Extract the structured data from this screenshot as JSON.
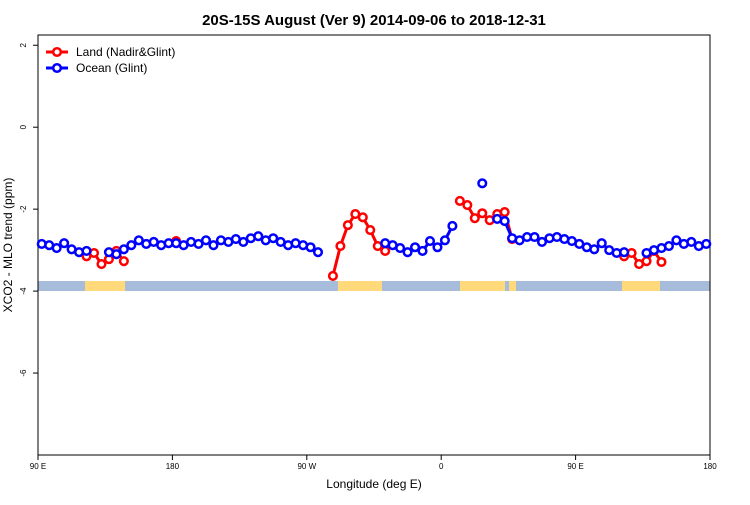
{
  "chart_data": {
    "type": "line",
    "title": "20S-15S August (Ver 9)   2014-09-06 to 2018-12-31",
    "x_label": "Longitude (deg E)",
    "y_label": "XCO2 - MLO trend (ppm)",
    "x": [
      92.5,
      97.5,
      102.5,
      107.5,
      112.5,
      117.5,
      122.5,
      127.5,
      132.5,
      137.5,
      142.5,
      147.5,
      152.5,
      157.5,
      162.5,
      167.5,
      172.5,
      177.5,
      182.5,
      187.5,
      192.5,
      197.5,
      202.5,
      207.5,
      212.5,
      217.5,
      222.5,
      227.5,
      232.5,
      237.5,
      242.5,
      247.5,
      252.5,
      257.5,
      262.5,
      267.5,
      272.5,
      277.5,
      282.5,
      287.5,
      292.5,
      297.5,
      302.5,
      307.5,
      312.5,
      317.5,
      322.5,
      327.5,
      332.5,
      337.5,
      342.5,
      347.5,
      352.5,
      357.5,
      362.5,
      367.5,
      372.5,
      377.5,
      382.5,
      387.5,
      392.5,
      397.5,
      402.5,
      407.5,
      412.5,
      417.5,
      422.5,
      427.5,
      432.5,
      437.5,
      442.5,
      447.5,
      452.5,
      457.5,
      462.5,
      467.5,
      472.5,
      477.5,
      482.5,
      487.5,
      492.5,
      497.5,
      502.5,
      507.5,
      512.5,
      517.5,
      522.5,
      527.5,
      532.5,
      537.5
    ],
    "series": [
      {
        "name": "Land (Nadir&Glint)",
        "color": "#ff0000",
        "values": [
          null,
          null,
          null,
          null,
          null,
          null,
          -3.15,
          -3.07,
          -3.34,
          -3.22,
          -3.02,
          -3.27,
          null,
          null,
          null,
          null,
          null,
          null,
          -2.78,
          null,
          null,
          null,
          null,
          null,
          null,
          null,
          null,
          null,
          null,
          null,
          null,
          null,
          null,
          null,
          null,
          null,
          null,
          null,
          null,
          -3.63,
          -2.9,
          -2.39,
          -2.12,
          -2.2,
          -2.51,
          -2.9,
          -3.02,
          null,
          null,
          null,
          null,
          null,
          null,
          null,
          null,
          null,
          -1.8,
          -1.9,
          -2.22,
          -2.1,
          -2.27,
          -2.12,
          -2.07,
          -2.73,
          null,
          null,
          null,
          null,
          null,
          null,
          null,
          null,
          null,
          null,
          null,
          null,
          null,
          null,
          -3.15,
          -3.07,
          -3.34,
          -3.27,
          -3.02,
          -3.29,
          null,
          null,
          null,
          null,
          null,
          null
        ]
      },
      {
        "name": "Ocean (Glint)",
        "color": "#0000ff",
        "values": [
          -2.85,
          -2.88,
          -2.95,
          -2.83,
          -2.98,
          -3.05,
          -3.02,
          null,
          null,
          -3.05,
          -3.1,
          -2.98,
          -2.88,
          -2.76,
          -2.85,
          -2.8,
          -2.88,
          -2.83,
          -2.83,
          -2.88,
          -2.8,
          -2.85,
          -2.76,
          -2.88,
          -2.76,
          -2.8,
          -2.73,
          -2.8,
          -2.71,
          -2.66,
          -2.76,
          -2.71,
          -2.8,
          -2.88,
          -2.83,
          -2.88,
          -2.93,
          -3.05,
          null,
          null,
          null,
          null,
          null,
          null,
          null,
          null,
          -2.83,
          -2.88,
          -2.95,
          -3.05,
          -2.93,
          -3.02,
          -2.78,
          -2.93,
          -2.76,
          -2.41,
          null,
          null,
          null,
          -1.37,
          null,
          -2.24,
          -2.29,
          -2.71,
          -2.76,
          -2.68,
          -2.68,
          -2.8,
          -2.71,
          -2.68,
          -2.73,
          -2.78,
          -2.85,
          -2.93,
          -2.98,
          -2.83,
          -3.0,
          -3.07,
          -3.05,
          null,
          null,
          -3.07,
          -3.0,
          -2.95,
          -2.9,
          -2.76,
          -2.85,
          -2.8,
          -2.9,
          -2.85
        ]
      }
    ],
    "xlim": [
      90,
      540
    ],
    "xticks": [
      {
        "value": 90,
        "label": "90 E"
      },
      180,
      {
        "value": 270,
        "label": "90 W"
      },
      {
        "value": 360,
        "label": "0"
      },
      {
        "value": 450,
        "label": "90 E"
      },
      {
        "value": 540,
        "label": "180"
      }
    ],
    "ylim": [
      -8,
      2.25
    ],
    "yticks": [
      -6,
      -4,
      -2,
      0,
      2
    ],
    "legend": "upper left"
  }
}
